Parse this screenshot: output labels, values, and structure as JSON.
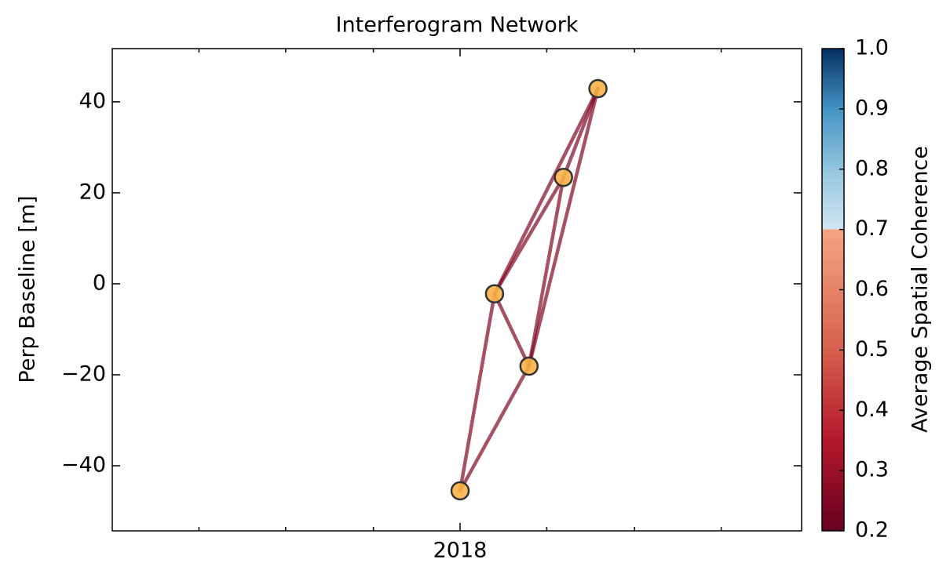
{
  "chart_data": {
    "type": "network",
    "title": "Interferogram Network",
    "y_label": "Perp Baseline [m]",
    "colorbar_label": "Average Spatial Coherence",
    "x": [
      2018.0,
      2018.033,
      2018.066,
      2018.099,
      2018.132
    ],
    "values": [
      -45.5,
      -2.2,
      -18.1,
      23.4,
      42.9
    ],
    "edges": [
      {
        "pair": [
          0,
          1
        ],
        "coherence": 0.25
      },
      {
        "pair": [
          0,
          2
        ],
        "coherence": 0.25
      },
      {
        "pair": [
          1,
          2
        ],
        "coherence": 0.25
      },
      {
        "pair": [
          1,
          3
        ],
        "coherence": 0.25
      },
      {
        "pair": [
          1,
          4
        ],
        "coherence": 0.25
      },
      {
        "pair": [
          2,
          3
        ],
        "coherence": 0.25
      },
      {
        "pair": [
          2,
          4
        ],
        "coherence": 0.25
      },
      {
        "pair": [
          3,
          4
        ],
        "coherence": 0.25
      }
    ],
    "marker_color": "#f9b248",
    "xlim": [
      2017.667,
      2018.327
    ],
    "xticks": [
      2018
    ],
    "xminorticks": [
      2017.75,
      2017.833,
      2017.917,
      2018.083,
      2018.167,
      2018.25
    ],
    "ylim": [
      -54.3,
      51.7
    ],
    "yticks": [
      {
        "value": -40,
        "label": "−40"
      },
      {
        "value": -20,
        "label": "−20"
      },
      0,
      20,
      40
    ],
    "clim": [
      0.2,
      1.0
    ],
    "cticks": [
      {
        "value": 0.2,
        "label": "0.2"
      },
      {
        "value": 0.3,
        "label": "0.3"
      },
      {
        "value": 0.4,
        "label": "0.4"
      },
      {
        "value": 0.5,
        "label": "0.5"
      },
      {
        "value": 0.6,
        "label": "0.6"
      },
      {
        "value": 0.7,
        "label": "0.7"
      },
      {
        "value": 0.8,
        "label": "0.8"
      },
      {
        "value": 0.9,
        "label": "0.9"
      },
      {
        "value": 1.0,
        "label": "1.0"
      }
    ],
    "colormap": [
      {
        "value": 0.2,
        "color": "#67001f"
      },
      {
        "value": 0.35,
        "color": "#b2182b"
      },
      {
        "value": 0.5,
        "color": "#d6604d"
      },
      {
        "value": 0.7,
        "color": "#f4a582"
      },
      {
        "value": 0.7,
        "color": "#d1e5f0"
      },
      {
        "value": 0.8,
        "color": "#92c5de"
      },
      {
        "value": 0.9,
        "color": "#4393c3"
      },
      {
        "value": 1.0,
        "color": "#053061"
      }
    ]
  }
}
